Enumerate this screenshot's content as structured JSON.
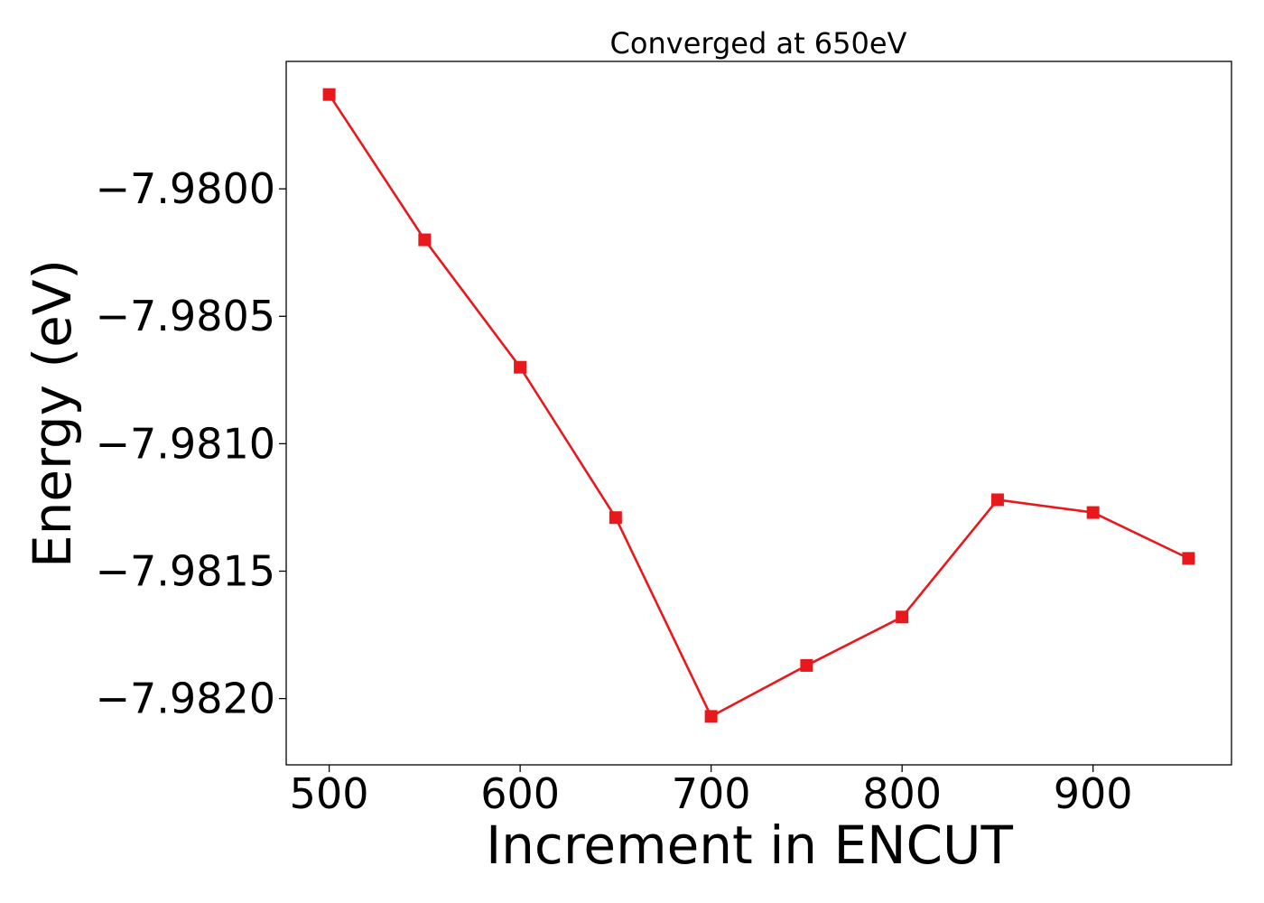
{
  "chart_data": {
    "type": "line",
    "title": "Converged at 650eV",
    "xlabel": "Increment in ENCUT",
    "ylabel": "Energy (eV)",
    "xlim": [
      477.5,
      972.5
    ],
    "ylim": [
      -7.98226,
      -7.9795
    ],
    "xticks": [
      500,
      600,
      700,
      800,
      900
    ],
    "xtick_labels": [
      "500",
      "600",
      "700",
      "800",
      "900"
    ],
    "yticks": [
      -7.98,
      -7.9805,
      -7.981,
      -7.9815,
      -7.982
    ],
    "ytick_labels": [
      "−7.9800",
      "−7.9805",
      "−7.9810",
      "−7.9815",
      "−7.9820"
    ],
    "grid": false,
    "series": [
      {
        "color": "#e8191c",
        "marker": "square",
        "x": [
          500,
          550,
          600,
          650,
          700,
          750,
          800,
          850,
          900,
          950
        ],
        "y": [
          -7.97963,
          -7.9802,
          -7.9807,
          -7.98129,
          -7.98207,
          -7.98187,
          -7.98168,
          -7.98122,
          -7.98127,
          -7.98145
        ]
      }
    ]
  }
}
